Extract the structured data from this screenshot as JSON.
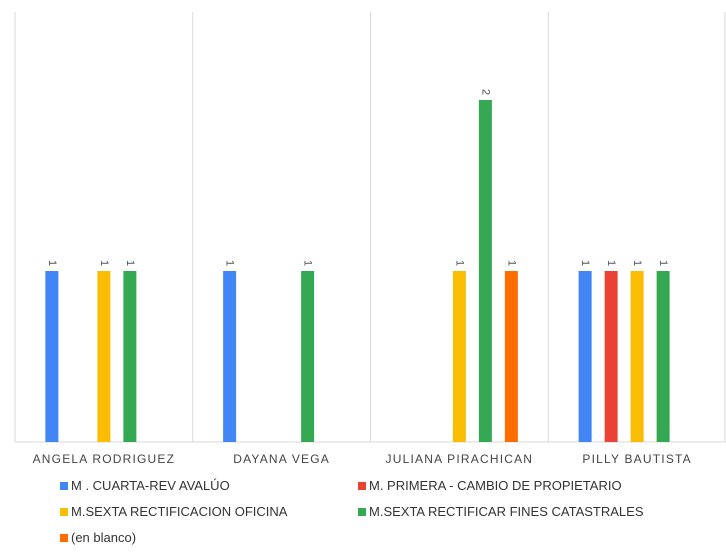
{
  "chart_data": {
    "type": "bar",
    "categories": [
      "ANGELA RODRIGUEZ",
      "DAYANA VEGA",
      "JULIANA PIRACHICAN",
      "PILLY BAUTISTA"
    ],
    "series": [
      {
        "name": "M . CUARTA-REV AVALÚO",
        "color": "#4285f4",
        "values": [
          1,
          1,
          null,
          1
        ]
      },
      {
        "name": "M. PRIMERA - CAMBIO DE PROPIETARIO",
        "color": "#ea4335",
        "values": [
          null,
          null,
          null,
          1
        ]
      },
      {
        "name": "M.SEXTA RECTIFICACION OFICINA",
        "color": "#fbbc04",
        "values": [
          1,
          null,
          1,
          1
        ]
      },
      {
        "name": "M.SEXTA RECTIFICAR FINES CATASTRALES",
        "color": "#34a853",
        "values": [
          1,
          1,
          2,
          1
        ]
      },
      {
        "name": "(en blanco)",
        "color": "#ff6d01",
        "values": [
          null,
          null,
          1,
          null
        ]
      }
    ],
    "ylim": [
      0,
      2.5
    ],
    "grid": false,
    "legend": "bottom"
  }
}
